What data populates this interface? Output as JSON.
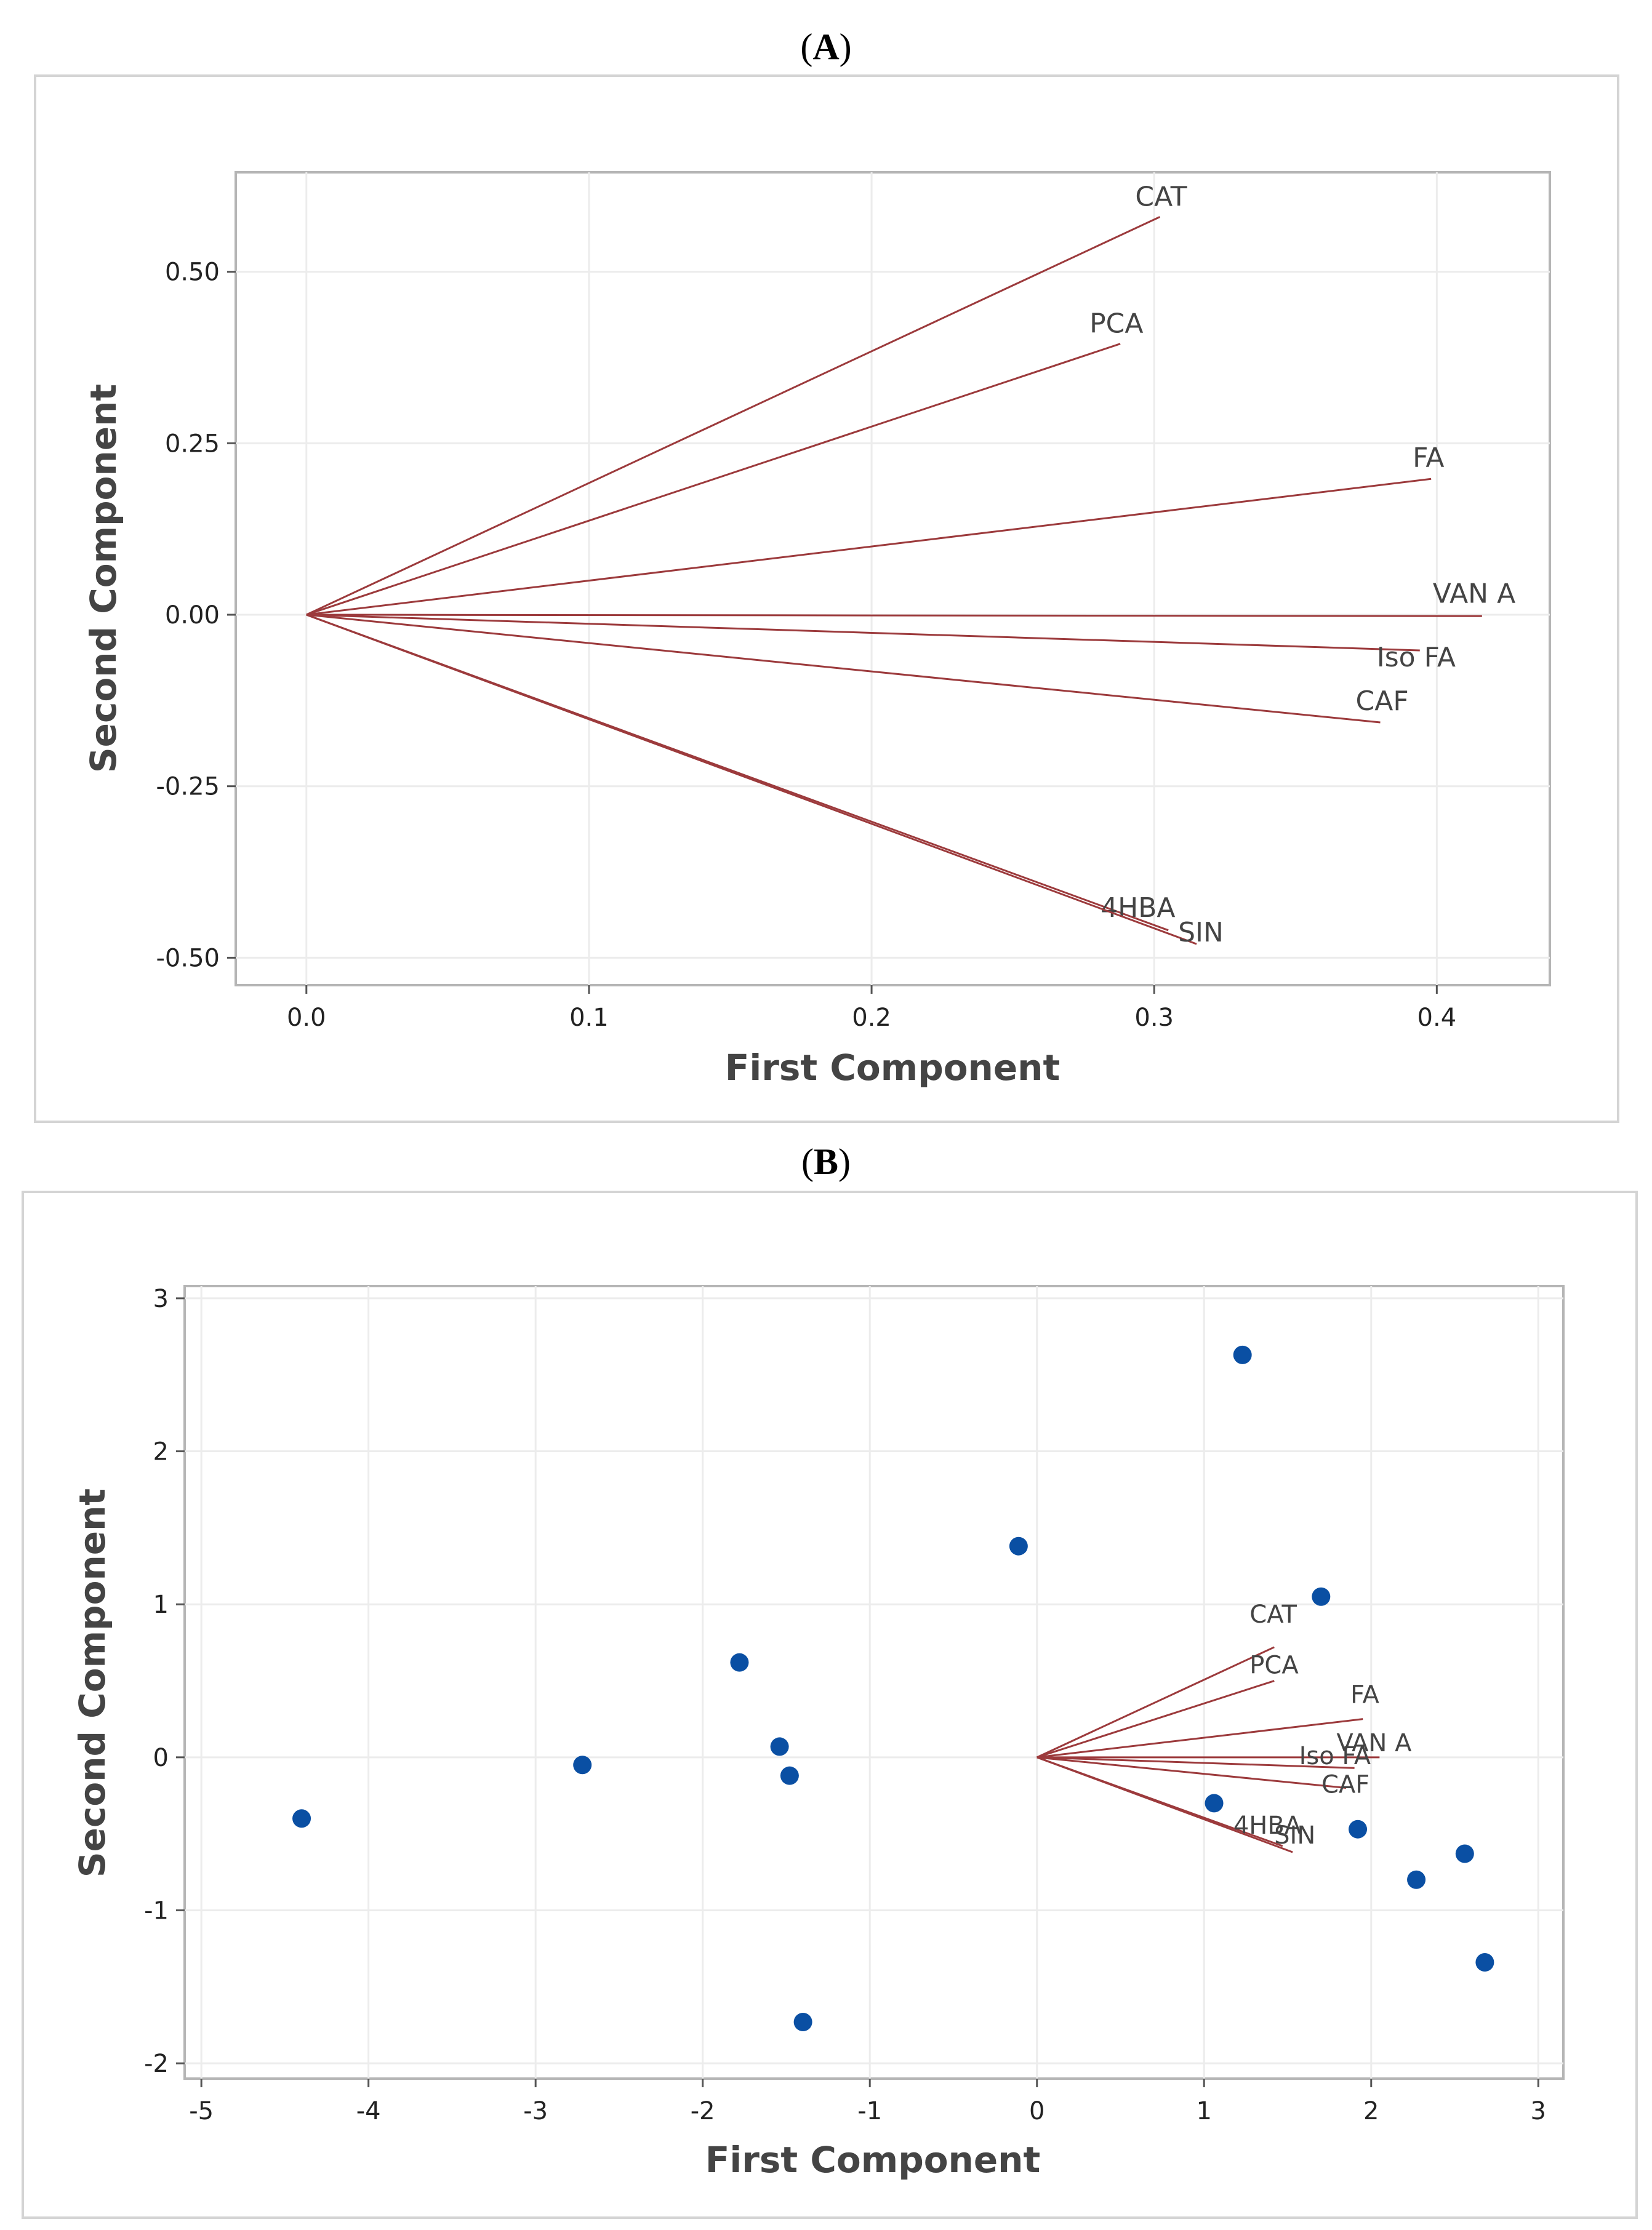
{
  "panels": [
    {
      "label": "A",
      "chart_data": {
        "type": "biplot-loading",
        "title": "",
        "xlabel": "First Component",
        "ylabel": "Second Component",
        "xlim": [
          -0.025,
          0.44
        ],
        "ylim": [
          -0.54,
          0.645
        ],
        "xticks": [
          0.0,
          0.1,
          0.2,
          0.3,
          0.4
        ],
        "xtick_labels": [
          "0.0",
          "0.1",
          "0.2",
          "0.3",
          "0.4"
        ],
        "yticks": [
          0.5,
          0.25,
          0.0,
          -0.25,
          -0.5
        ],
        "ytick_labels": [
          "0.50",
          "0.25",
          "0.00",
          "-0.25",
          "-0.50"
        ],
        "grid": true,
        "vectors": [
          {
            "name": "CAT",
            "x": 0.302,
            "y": 0.58
          },
          {
            "name": "PCA",
            "x": 0.288,
            "y": 0.395
          },
          {
            "name": "FA",
            "x": 0.398,
            "y": 0.198
          },
          {
            "name": "VAN A",
            "x": 0.416,
            "y": -0.002
          },
          {
            "name": "Iso FA",
            "x": 0.394,
            "y": -0.052
          },
          {
            "name": "CAF",
            "x": 0.38,
            "y": -0.157
          },
          {
            "name": "4HBA",
            "x": 0.305,
            "y": -0.46
          },
          {
            "name": "SIN",
            "x": 0.315,
            "y": -0.48
          }
        ]
      }
    },
    {
      "label": "B",
      "chart_data": {
        "type": "biplot",
        "title": "",
        "xlabel": "First Component",
        "ylabel": "Second Component",
        "xlim": [
          -5.1,
          3.15
        ],
        "ylim": [
          -2.1,
          3.08
        ],
        "xticks": [
          -5,
          -4,
          -3,
          -2,
          -1,
          0,
          1,
          2,
          3
        ],
        "xtick_labels": [
          "-5",
          "-4",
          "-3",
          "-2",
          "-1",
          "0",
          "1",
          "2",
          "3"
        ],
        "yticks": [
          3,
          2,
          1,
          0,
          -1,
          -2
        ],
        "ytick_labels": [
          "3",
          "2",
          "1",
          "0",
          "-1",
          "-2"
        ],
        "grid": true,
        "vectors": [
          {
            "name": "CAT",
            "x": 1.42,
            "y": 0.72
          },
          {
            "name": "PCA",
            "x": 1.42,
            "y": 0.5
          },
          {
            "name": "FA",
            "x": 1.95,
            "y": 0.25
          },
          {
            "name": "VAN A",
            "x": 2.05,
            "y": 0.0
          },
          {
            "name": "Iso FA",
            "x": 1.9,
            "y": -0.07
          },
          {
            "name": "CAF",
            "x": 1.85,
            "y": -0.2
          },
          {
            "name": "4HBA",
            "x": 1.47,
            "y": -0.58
          },
          {
            "name": "SIN",
            "x": 1.53,
            "y": -0.62
          }
        ],
        "points": [
          {
            "x": 1.23,
            "y": 2.63
          },
          {
            "x": -0.11,
            "y": 1.38
          },
          {
            "x": 1.7,
            "y": 1.05
          },
          {
            "x": -1.78,
            "y": 0.62
          },
          {
            "x": -1.54,
            "y": 0.07
          },
          {
            "x": -2.72,
            "y": -0.05
          },
          {
            "x": -1.48,
            "y": -0.12
          },
          {
            "x": -4.4,
            "y": -0.4
          },
          {
            "x": 1.06,
            "y": -0.3
          },
          {
            "x": 1.92,
            "y": -0.47
          },
          {
            "x": 2.56,
            "y": -0.63
          },
          {
            "x": 2.27,
            "y": -0.8
          },
          {
            "x": 2.68,
            "y": -1.34
          },
          {
            "x": -1.4,
            "y": -1.73
          }
        ]
      }
    }
  ],
  "colors": {
    "vector": "#9c3a3c",
    "point": "#0a4fa3",
    "grid": "#ececec"
  }
}
